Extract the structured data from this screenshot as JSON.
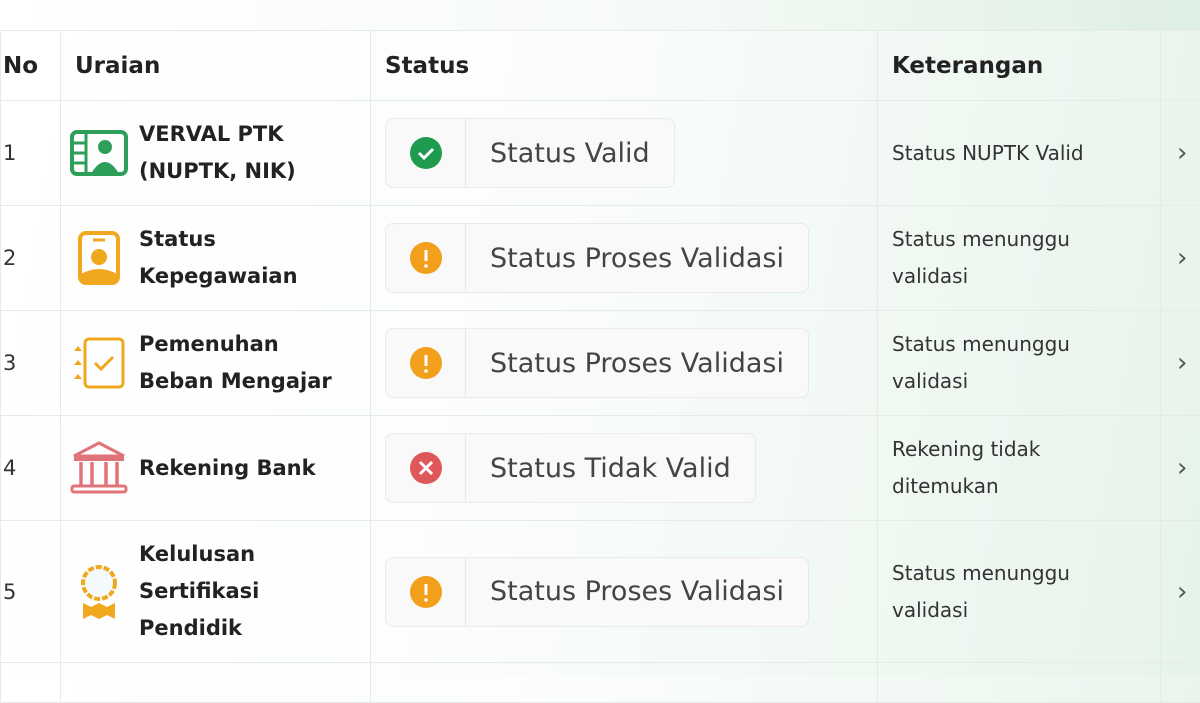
{
  "table": {
    "headers": {
      "no": "No",
      "uraian": "Uraian",
      "status": "Status",
      "keterangan": "Keterangan"
    },
    "rows": [
      {
        "no": "1",
        "uraian": "VERVAL PTK (NUPTK, NIK)",
        "icon": "id-card-icon",
        "icon_color": "#2e9e5b",
        "status": "Status Valid",
        "status_type": "valid",
        "status_icon": "check-circle-icon",
        "status_color": "#1e9b4f",
        "keterangan": "Status NUPTK Valid"
      },
      {
        "no": "2",
        "uraian": "Status Kepegawaian",
        "icon": "badge-icon",
        "icon_color": "#f0a81e",
        "status": "Status Proses Validasi",
        "status_type": "pending",
        "status_icon": "exclamation-circle-icon",
        "status_color": "#f2a01c",
        "keterangan": "Status menunggu validasi"
      },
      {
        "no": "3",
        "uraian": "Pemenuhan Beban Mengajar",
        "icon": "checklist-icon",
        "icon_color": "#f0a81e",
        "status": "Status Proses Validasi",
        "status_type": "pending",
        "status_icon": "exclamation-circle-icon",
        "status_color": "#f2a01c",
        "keterangan": "Status menunggu validasi"
      },
      {
        "no": "4",
        "uraian": "Rekening Bank",
        "icon": "bank-icon",
        "icon_color": "#e07478",
        "status": "Status Tidak Valid",
        "status_type": "invalid",
        "status_icon": "x-circle-icon",
        "status_color": "#e0575b",
        "keterangan": "Rekening tidak ditemukan"
      },
      {
        "no": "5",
        "uraian": "Kelulusan Sertifikasi Pendidik",
        "icon": "award-icon",
        "icon_color": "#f0a81e",
        "status": "Status Proses Validasi",
        "status_type": "pending",
        "status_icon": "exclamation-circle-icon",
        "status_color": "#f2a01c",
        "keterangan": "Status menunggu validasi"
      }
    ]
  }
}
